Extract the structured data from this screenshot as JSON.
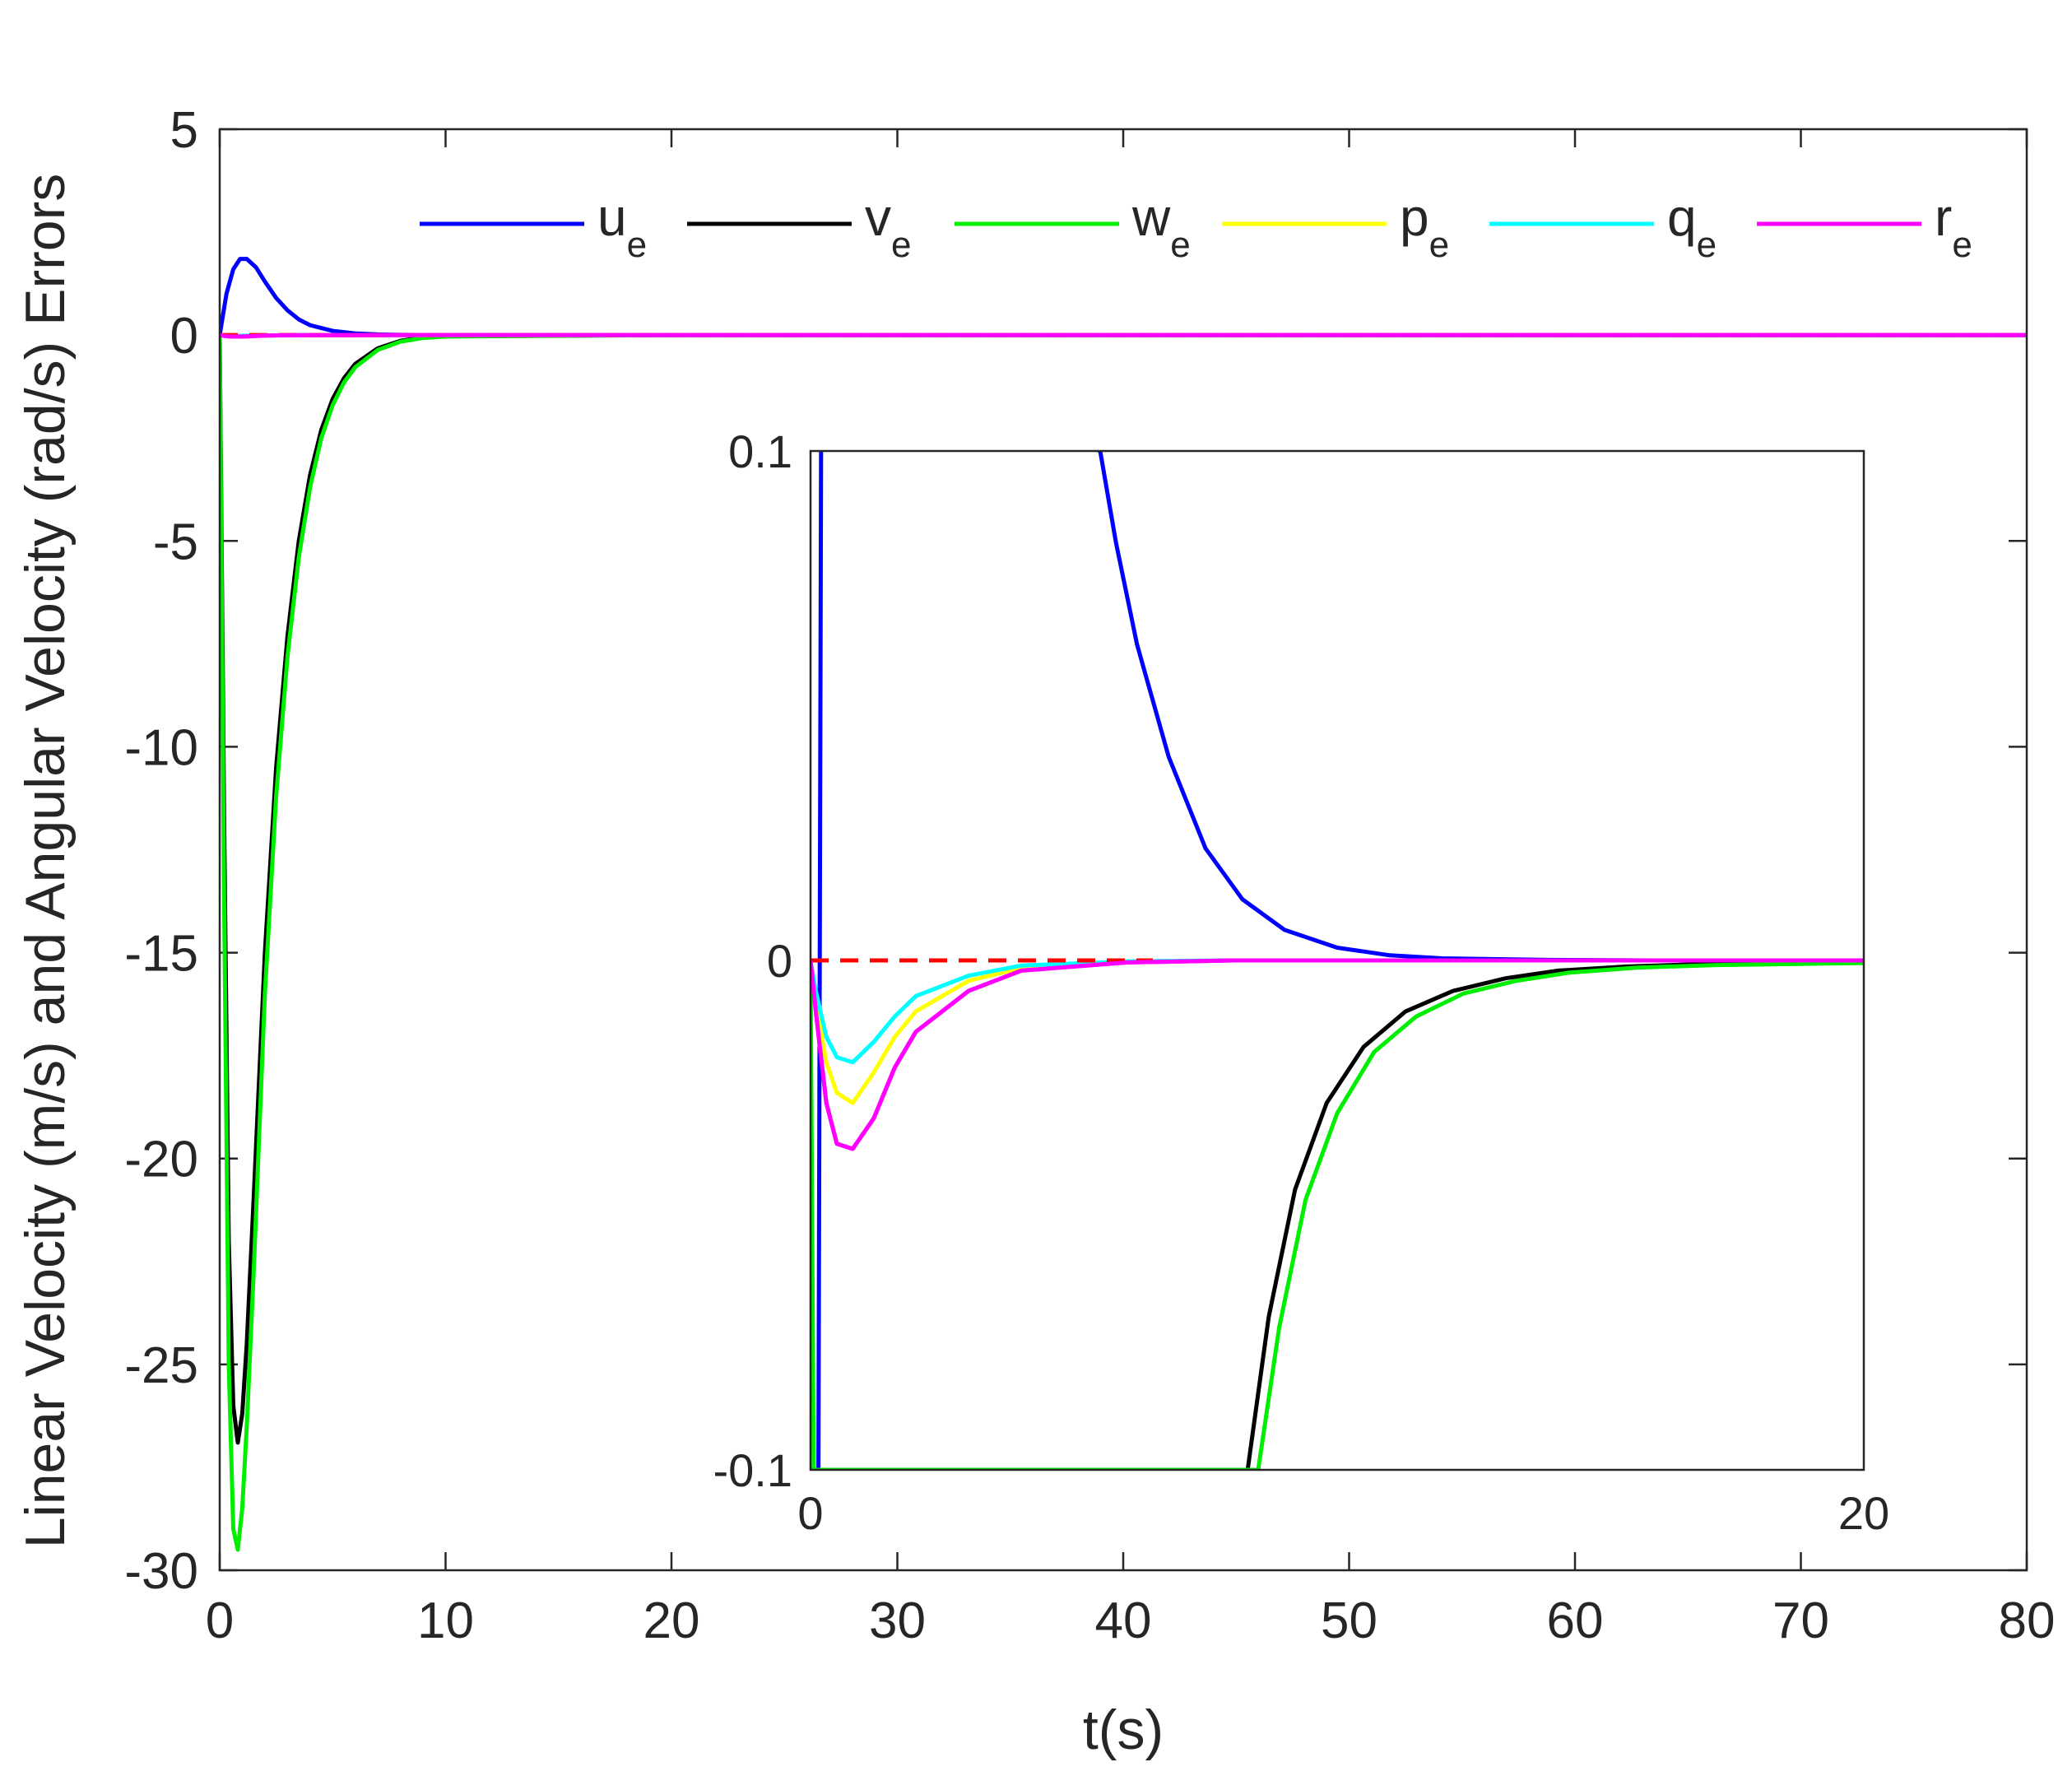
{
  "chart_data": [
    {
      "type": "line",
      "xlabel": "t(s)",
      "ylabel": "Linear Velocity (m/s) and Angular Velocity (rad/s) Errors",
      "xlim": [
        0,
        80
      ],
      "ylim": [
        -30,
        5
      ],
      "xticks": [
        0,
        10,
        20,
        30,
        40,
        50,
        60,
        70,
        80
      ],
      "yticks": [
        5,
        0,
        -5,
        -10,
        -15,
        -20,
        -25,
        -30
      ],
      "grid": false,
      "legend": {
        "placement": "top",
        "orientation": "horizontal"
      },
      "reference_line": {
        "y": 0,
        "color": "#ff0000",
        "style": "dashed"
      },
      "series": [
        {
          "name": "u",
          "subscript": "e",
          "color": "#0000ff",
          "x": [
            0,
            0.3,
            0.6,
            0.9,
            1.2,
            1.6,
            2.0,
            2.5,
            3.0,
            3.5,
            4.0,
            5.0,
            6.0,
            7.0,
            8.0,
            10.0,
            20.0,
            40.0,
            80.0
          ],
          "y": [
            0,
            1.0,
            1.6,
            1.85,
            1.85,
            1.65,
            1.3,
            0.9,
            0.6,
            0.38,
            0.24,
            0.1,
            0.04,
            0.015,
            0.005,
            0,
            0,
            0,
            0
          ]
        },
        {
          "name": "v",
          "subscript": "e",
          "color": "#000000",
          "x": [
            0,
            0.2,
            0.4,
            0.6,
            0.8,
            1.0,
            1.2,
            1.5,
            2.0,
            2.5,
            3.0,
            3.5,
            4.0,
            4.5,
            5.0,
            5.5,
            6.0,
            7.0,
            8.0,
            9.0,
            10.0,
            20.0,
            40.0,
            80.0
          ],
          "y": [
            0,
            -12.0,
            -22.0,
            -26.0,
            -26.9,
            -26.2,
            -24.5,
            -21.0,
            -15.0,
            -10.5,
            -7.3,
            -5.0,
            -3.4,
            -2.3,
            -1.55,
            -1.05,
            -0.7,
            -0.32,
            -0.14,
            -0.06,
            -0.03,
            0,
            0,
            0
          ]
        },
        {
          "name": "w",
          "subscript": "e",
          "color": "#00ee00",
          "x": [
            0,
            0.2,
            0.4,
            0.6,
            0.8,
            1.0,
            1.2,
            1.5,
            2.0,
            2.5,
            3.0,
            3.5,
            4.0,
            4.5,
            5.0,
            5.5,
            6.0,
            7.0,
            8.0,
            9.0,
            10.0,
            20.0,
            40.0,
            80.0
          ],
          "y": [
            0,
            -14.0,
            -25.0,
            -29.0,
            -29.5,
            -28.5,
            -26.5,
            -22.8,
            -16.0,
            -11.2,
            -7.8,
            -5.4,
            -3.7,
            -2.5,
            -1.7,
            -1.15,
            -0.78,
            -0.36,
            -0.16,
            -0.07,
            -0.035,
            0,
            0,
            0
          ]
        },
        {
          "name": "p",
          "subscript": "e",
          "color": "#ffff00",
          "x": [
            0,
            0.1,
            0.3,
            0.5,
            0.8,
            1.2,
            1.6,
            2.0,
            3.0,
            4.0,
            6.0,
            8.0,
            80.0
          ],
          "y": [
            0,
            -0.008,
            -0.02,
            -0.026,
            -0.028,
            -0.022,
            -0.015,
            -0.01,
            -0.004,
            -0.0015,
            -0.0003,
            0,
            0
          ]
        },
        {
          "name": "q",
          "subscript": "e",
          "color": "#00ffff",
          "x": [
            0,
            0.1,
            0.3,
            0.5,
            0.8,
            1.2,
            1.6,
            2.0,
            3.0,
            4.0,
            6.0,
            8.0,
            80.0
          ],
          "y": [
            0,
            -0.006,
            -0.015,
            -0.019,
            -0.02,
            -0.016,
            -0.011,
            -0.007,
            -0.003,
            -0.001,
            -0.0002,
            0,
            0
          ]
        },
        {
          "name": "r",
          "subscript": "e",
          "color": "#ff00ff",
          "x": [
            0,
            0.1,
            0.3,
            0.5,
            0.8,
            1.2,
            1.6,
            2.0,
            3.0,
            4.0,
            6.0,
            8.0,
            80.0
          ],
          "y": [
            0,
            -0.01,
            -0.028,
            -0.036,
            -0.037,
            -0.031,
            -0.021,
            -0.014,
            -0.006,
            -0.002,
            -0.0004,
            0,
            0
          ]
        }
      ]
    },
    {
      "type": "line",
      "role": "inset",
      "xlim": [
        0,
        20
      ],
      "ylim": [
        -0.1,
        0.1
      ],
      "xtick_labels": [
        "0",
        "20"
      ],
      "ytick_labels": [
        "0.1",
        "0",
        "-0.1"
      ],
      "reference_line": {
        "y": 0,
        "color": "#ff0000",
        "style": "dashed",
        "x_end": 6.5
      },
      "series": [
        {
          "name": "u",
          "color": "#0000ff",
          "x": [
            0,
            0.15,
            0.2,
            0.25,
            5.5,
            5.8,
            6.2,
            6.8,
            7.5,
            8.2,
            9.0,
            10.0,
            11.0,
            12.0,
            14.0,
            16.0,
            20.0
          ],
          "y": [
            -0.1,
            -0.1,
            0.1,
            0.12,
            0.1,
            0.082,
            0.062,
            0.04,
            0.022,
            0.012,
            0.006,
            0.0025,
            0.001,
            0.0004,
            0.0001,
            0,
            0
          ]
        },
        {
          "name": "v",
          "color": "#000000",
          "x": [
            8.3,
            8.7,
            9.2,
            9.8,
            10.5,
            11.3,
            12.2,
            13.2,
            14.2,
            15.5,
            17.0,
            20.0
          ],
          "y": [
            -0.1,
            -0.07,
            -0.045,
            -0.028,
            -0.017,
            -0.01,
            -0.006,
            -0.0035,
            -0.002,
            -0.0012,
            -0.0007,
            -0.0004
          ]
        },
        {
          "name": "w",
          "color": "#00ee00",
          "x": [
            0,
            0.03,
            0.06,
            8.5,
            8.9,
            9.4,
            10.0,
            10.7,
            11.5,
            12.4,
            13.4,
            14.4,
            15.7,
            17.2,
            20.0
          ],
          "y": [
            0,
            -0.05,
            -0.1,
            -0.1,
            -0.072,
            -0.047,
            -0.03,
            -0.018,
            -0.011,
            -0.0065,
            -0.004,
            -0.0024,
            -0.0014,
            -0.0009,
            -0.0005
          ]
        },
        {
          "name": "p",
          "color": "#ffff00",
          "x": [
            0,
            0.1,
            0.3,
            0.5,
            0.8,
            1.2,
            1.6,
            2.0,
            3.0,
            4.0,
            6.0,
            8.0,
            20.0
          ],
          "y": [
            0,
            -0.008,
            -0.02,
            -0.026,
            -0.028,
            -0.022,
            -0.015,
            -0.01,
            -0.004,
            -0.0015,
            -0.0003,
            0,
            0
          ]
        },
        {
          "name": "q",
          "color": "#00ffff",
          "x": [
            0,
            0.1,
            0.3,
            0.5,
            0.8,
            1.2,
            1.6,
            2.0,
            3.0,
            4.0,
            6.0,
            8.0,
            20.0
          ],
          "y": [
            0,
            -0.006,
            -0.015,
            -0.019,
            -0.02,
            -0.016,
            -0.011,
            -0.007,
            -0.003,
            -0.001,
            -0.0002,
            0,
            0
          ]
        },
        {
          "name": "r",
          "color": "#ff00ff",
          "x": [
            0,
            0.1,
            0.3,
            0.5,
            0.8,
            1.2,
            1.6,
            2.0,
            3.0,
            4.0,
            6.0,
            8.0,
            20.0
          ],
          "y": [
            0,
            -0.01,
            -0.028,
            -0.036,
            -0.037,
            -0.031,
            -0.021,
            -0.014,
            -0.006,
            -0.002,
            -0.0004,
            0,
            0
          ]
        }
      ]
    }
  ]
}
